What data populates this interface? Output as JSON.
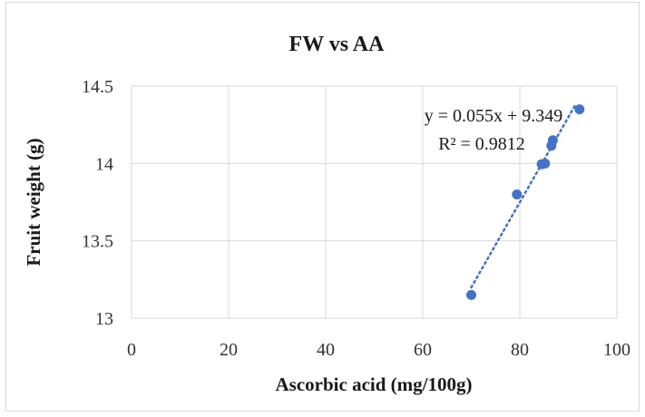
{
  "chart_data": {
    "type": "scatter",
    "title": "FW vs AA",
    "xlabel": "Ascorbic acid (mg/100g)",
    "ylabel": "Fruit weight (g)",
    "xlim": [
      0,
      100
    ],
    "ylim": [
      13,
      14.5
    ],
    "x_ticks": [
      "0",
      "20",
      "40",
      "60",
      "80",
      "100"
    ],
    "y_ticks": [
      "13",
      "13.5",
      "14",
      "14.5"
    ],
    "grid": true,
    "legend": "none",
    "series": [
      {
        "points": [
          {
            "x": 70.0,
            "y": 13.15
          },
          {
            "x": 79.4,
            "y": 13.8
          },
          {
            "x": 84.5,
            "y": 13.995
          },
          {
            "x": 85.2,
            "y": 14.0
          },
          {
            "x": 86.5,
            "y": 14.115
          },
          {
            "x": 86.8,
            "y": 14.15
          },
          {
            "x": 92.3,
            "y": 14.35
          }
        ],
        "color": "#4472c4"
      }
    ],
    "trendline": {
      "type": "linear",
      "slope": 0.055,
      "intercept": 9.349,
      "x_range": [
        70.0,
        91.5
      ],
      "color": "#4472c4",
      "style": "dotted",
      "equation_label": "y = 0.055x + 9.349",
      "r2_label": "R² = 0.9812"
    }
  }
}
